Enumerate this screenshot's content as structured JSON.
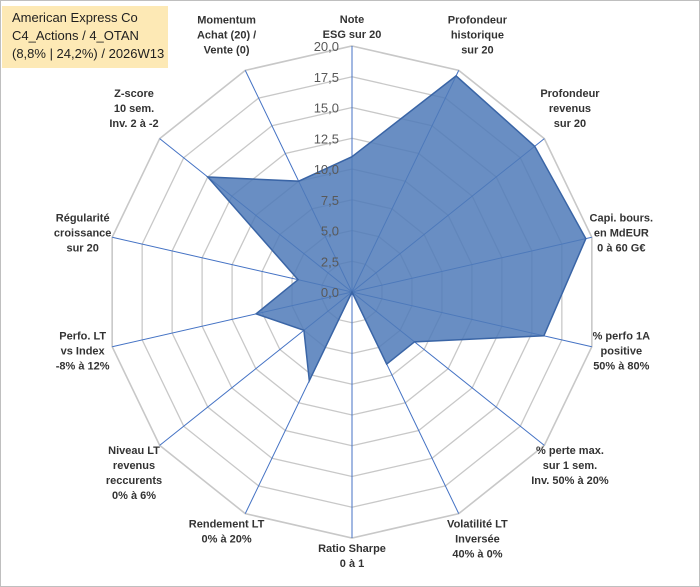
{
  "title_box": {
    "line1": "American Express Co",
    "line2": "C4_Actions / 4_OTAN",
    "line3": "(8,8% | 24,2%) / 2026W13"
  },
  "colors": {
    "fill": "#4f7ab8",
    "stroke": "#3a65a6",
    "grid": "#c8c8c8",
    "spoke": "#4472c4",
    "title_bg": "#fde9b5"
  },
  "chart_data": {
    "type": "radar",
    "title": "",
    "rmin": 0,
    "rmax": 20,
    "tick_step": 2.5,
    "tick_labels": [
      "0,0",
      "2,5",
      "5,0",
      "7,5",
      "10,0",
      "12,5",
      "15,0",
      "17,5",
      "20,0"
    ],
    "axes": [
      {
        "label": [
          "Note",
          "ESG sur 20"
        ],
        "value": 11.0
      },
      {
        "label": [
          "Profondeur",
          "historique",
          "sur 20"
        ],
        "value": 19.5
      },
      {
        "label": [
          "Profondeur",
          "revenus",
          "sur 20"
        ],
        "value": 19.0
      },
      {
        "label": [
          "Capi. bours.",
          "en MdEUR",
          "0 à 60 G€"
        ],
        "value": 19.5
      },
      {
        "label": [
          "% perfo 1A",
          "positive",
          "50% à 80%"
        ],
        "value": 16.0
      },
      {
        "label": [
          "% perte max.",
          "sur 1 sem.",
          "Inv. 50% à 20%"
        ],
        "value": 6.5
      },
      {
        "label": [
          "Volatilité LT",
          "Inversée",
          "40% à 0%"
        ],
        "value": 6.5
      },
      {
        "label": [
          "Ratio Sharpe",
          "0 à 1"
        ],
        "value": 0.0
      },
      {
        "label": [
          "Rendement LT",
          "0% à 20%"
        ],
        "value": 8.0
      },
      {
        "label": [
          "Niveau LT",
          "revenus",
          "reccurents",
          "0% à 6%"
        ],
        "value": 5.0
      },
      {
        "label": [
          "Perfo. LT",
          "vs Index",
          "-8% à 12%"
        ],
        "value": 8.0
      },
      {
        "label": [
          "Régularité",
          "croissance",
          "sur 20"
        ],
        "value": 4.5
      },
      {
        "label": [
          "Z-score",
          "10 sem.",
          "Inv. 2 à -2"
        ],
        "value": 15.0
      },
      {
        "label": [
          "Momentum",
          "Achat (20) /",
          "Vente (0)"
        ],
        "value": 10.0
      }
    ]
  }
}
